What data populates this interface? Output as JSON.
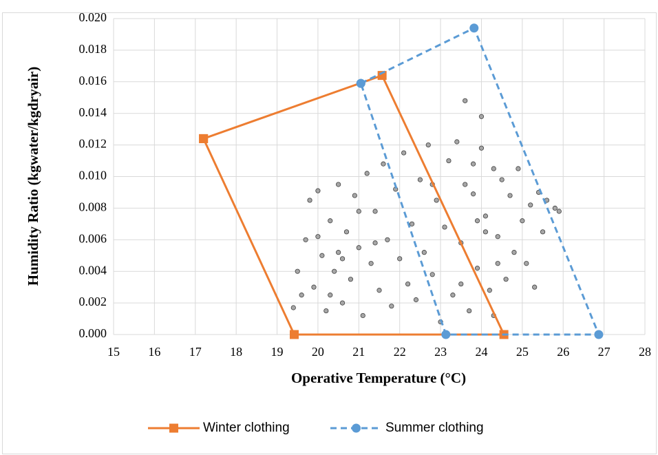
{
  "chart_data": {
    "type": "scatter",
    "xlabel": "Operative Temperature (°C)",
    "ylabel": "Humidity Ratio (kgwater/kgdryair)",
    "xlim": [
      15,
      28
    ],
    "ylim": [
      0,
      0.02
    ],
    "xticks": [
      15,
      16,
      17,
      18,
      19,
      20,
      21,
      22,
      23,
      24,
      25,
      26,
      27,
      28
    ],
    "yticks": [
      {
        "value": 0,
        "label": "0.000"
      },
      {
        "value": 0.002,
        "label": "0.002"
      },
      {
        "value": 0.004,
        "label": "0.004"
      },
      {
        "value": 0.006,
        "label": "0.006"
      },
      {
        "value": 0.008,
        "label": "0.008"
      },
      {
        "value": 0.01,
        "label": "0.010"
      },
      {
        "value": 0.012,
        "label": "0.012"
      },
      {
        "value": 0.014,
        "label": "0.014"
      },
      {
        "value": 0.016,
        "label": "0.016"
      },
      {
        "value": 0.018,
        "label": "0.018"
      },
      {
        "value": 0.02,
        "label": "0.020"
      }
    ],
    "grid": true,
    "legend": "bottom",
    "points": {
      "color": "#a6a6a6",
      "x": [
        19.4,
        19.5,
        19.6,
        19.7,
        19.8,
        19.9,
        20.0,
        20.1,
        20.2,
        20.3,
        20.4,
        20.5,
        20.6,
        20.7,
        20.8,
        20.9,
        21.0,
        21.1,
        21.2,
        21.3,
        21.4,
        21.5,
        21.6,
        21.7,
        21.8,
        21.9,
        22.0,
        22.1,
        22.2,
        22.3,
        22.4,
        22.5,
        22.6,
        22.7,
        22.8,
        22.9,
        23.0,
        23.1,
        23.2,
        23.3,
        23.4,
        23.5,
        23.6,
        23.7,
        23.8,
        23.9,
        24.0,
        24.1,
        24.2,
        24.3,
        24.4,
        24.5,
        24.6,
        24.7,
        24.8,
        24.9,
        25.0,
        25.1,
        25.2,
        25.3,
        25.4,
        25.5,
        25.6,
        25.8,
        25.9,
        20.0,
        20.3,
        20.6,
        21.0,
        21.4,
        23.5,
        23.8,
        24.1,
        24.4,
        23.6,
        24.0,
        24.3,
        22.8,
        20.5,
        23.9
      ],
      "y": [
        0.0017,
        0.004,
        0.0025,
        0.006,
        0.0085,
        0.003,
        0.0091,
        0.005,
        0.0015,
        0.0072,
        0.004,
        0.0095,
        0.002,
        0.0065,
        0.0035,
        0.0088,
        0.0055,
        0.0012,
        0.0102,
        0.0045,
        0.0078,
        0.0028,
        0.0108,
        0.006,
        0.0018,
        0.0092,
        0.0048,
        0.0115,
        0.0032,
        0.007,
        0.0022,
        0.0098,
        0.0052,
        0.012,
        0.0038,
        0.0085,
        0.0008,
        0.0068,
        0.011,
        0.0025,
        0.0122,
        0.0058,
        0.0095,
        0.0015,
        0.0108,
        0.0042,
        0.0118,
        0.0075,
        0.0028,
        0.0105,
        0.0062,
        0.0098,
        0.0035,
        0.0088,
        0.0052,
        0.0105,
        0.0072,
        0.0045,
        0.0082,
        0.003,
        0.009,
        0.0065,
        0.0085,
        0.008,
        0.0078,
        0.0062,
        0.0025,
        0.0048,
        0.0078,
        0.0058,
        0.0032,
        0.0089,
        0.0065,
        0.0045,
        0.0148,
        0.0138,
        0.0012,
        0.0095,
        0.0052,
        0.0072
      ]
    },
    "series": [
      {
        "name": "Winter clothing",
        "color": "#ed7d31",
        "dash": false,
        "marker": "square",
        "x": [
          17.2,
          21.57,
          24.55,
          19.42,
          17.2
        ],
        "values": [
          0.0124,
          0.0164,
          0,
          0,
          0.0124
        ]
      },
      {
        "name": "Summer clothing",
        "color": "#5b9bd5",
        "dash": true,
        "marker": "circle",
        "x": [
          21.05,
          23.82,
          26.87,
          23.13,
          21.05
        ],
        "values": [
          0.0159,
          0.0194,
          0,
          0,
          0.0159
        ]
      }
    ]
  }
}
